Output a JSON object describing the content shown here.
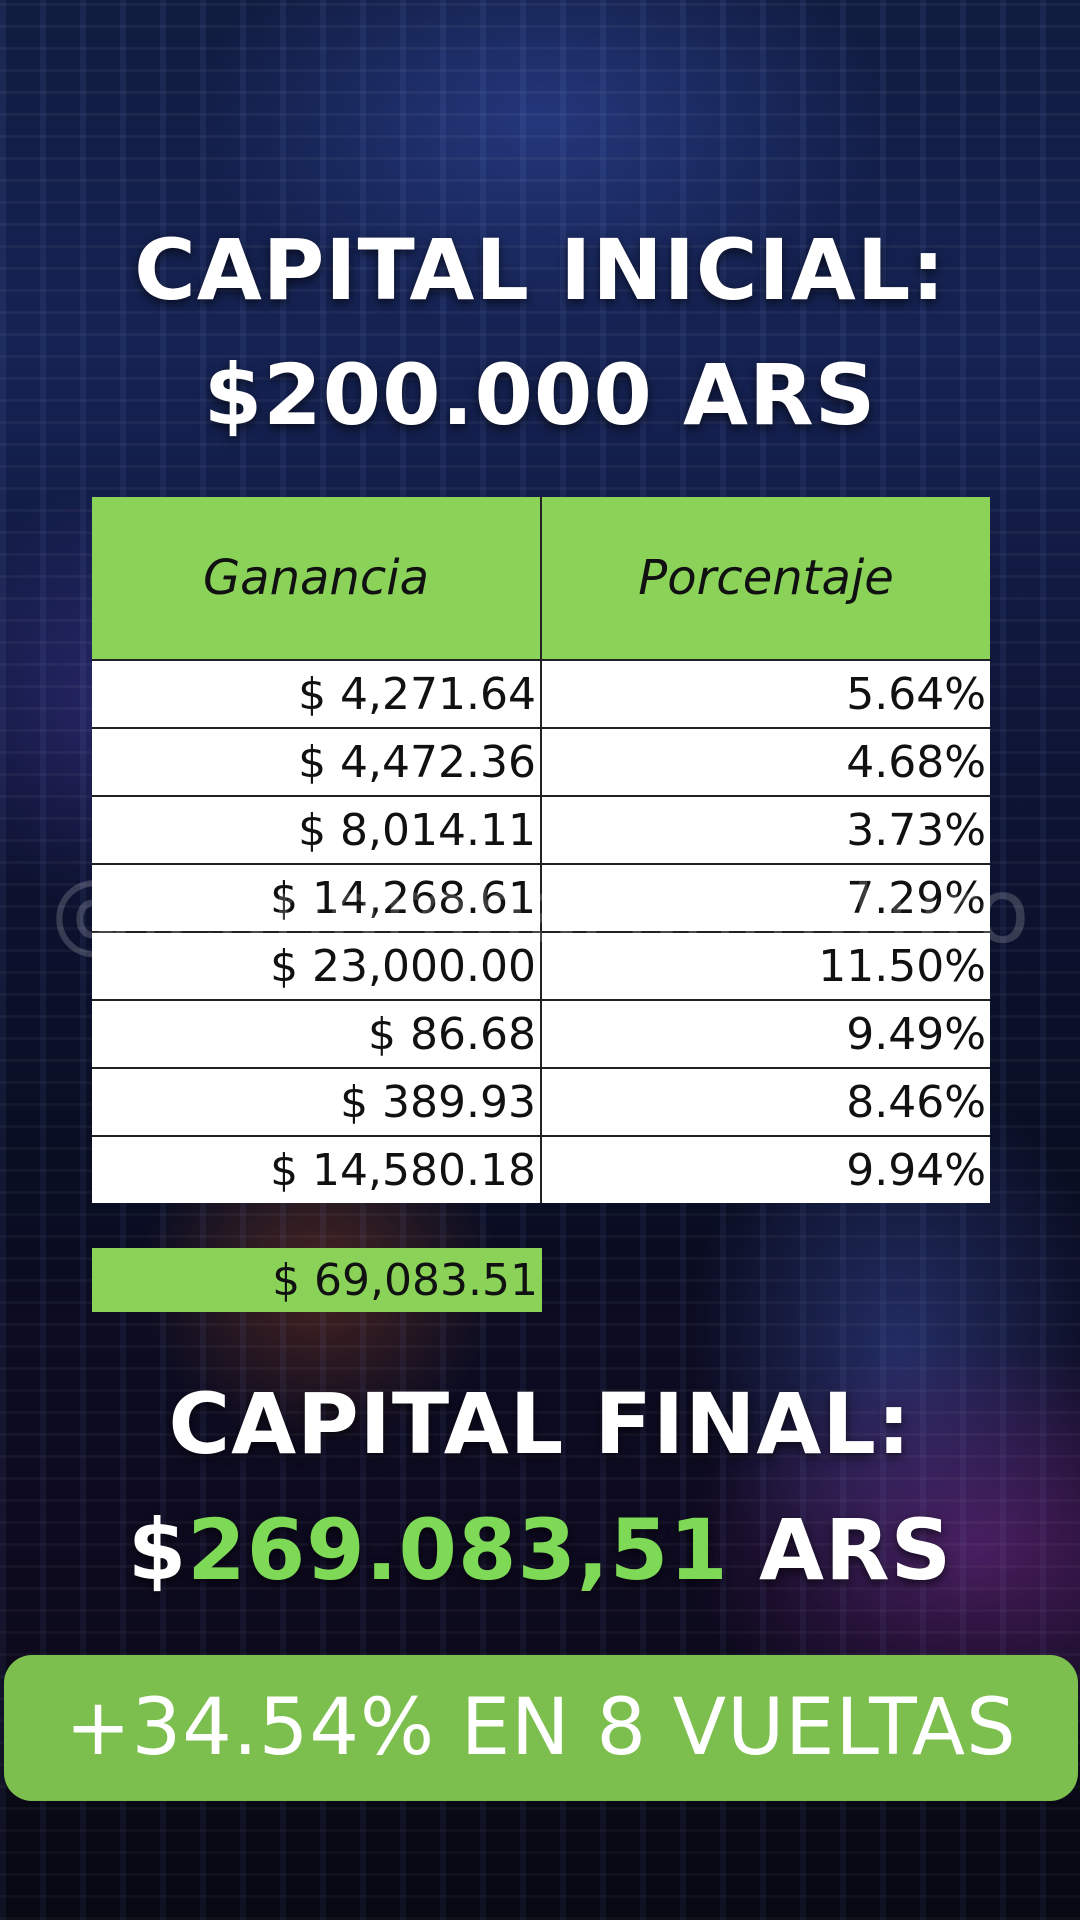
{
  "header": {
    "line1": "CAPITAL INICIAL:",
    "line2": "$200.000 ARS"
  },
  "table": {
    "columns": [
      "Ganancia",
      "Porcentaje"
    ],
    "rows": [
      {
        "ganancia": "$ 4,271.64",
        "porcentaje": "5.64%"
      },
      {
        "ganancia": "$ 4,472.36",
        "porcentaje": "4.68%"
      },
      {
        "ganancia": "$ 8,014.11",
        "porcentaje": "3.73%"
      },
      {
        "ganancia": "$ 14,268.61",
        "porcentaje": "7.29%"
      },
      {
        "ganancia": "$ 23,000.00",
        "porcentaje": "11.50%"
      },
      {
        "ganancia": "$ 86.68",
        "porcentaje": "9.49%"
      },
      {
        "ganancia": "$ 389.93",
        "porcentaje": "8.46%"
      },
      {
        "ganancia": "$ 14,580.18",
        "porcentaje": "9.94%"
      }
    ],
    "total": "$ 69,083.51"
  },
  "watermark": "@leandrobazan.futuro",
  "footer": {
    "line1": "CAPITAL FINAL:",
    "currency_symbol": "$",
    "amount": "269.083,51",
    "currency": "ARS",
    "highlight": "+34.54% EN 8 VUELTAS"
  },
  "colors": {
    "accent_green": "#7ed957",
    "table_header_green": "#8bd259",
    "pill_green": "#7dbf4e"
  }
}
